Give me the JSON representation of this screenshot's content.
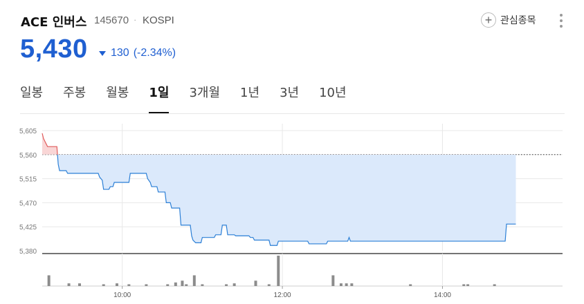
{
  "header": {
    "name": "ACE 인버스",
    "code": "145670",
    "separator": "·",
    "market": "KOSPI",
    "watch_label": "관심종목",
    "watch_icon": "plus-circle-icon",
    "more_icon": "more-vertical-icon"
  },
  "quote": {
    "price": "5,430",
    "change": "130",
    "change_pct": "(-2.34%)",
    "direction_icon": "triangle-down-icon",
    "color": "#1f5fd1"
  },
  "tabs": [
    {
      "label": "일봉",
      "active": false
    },
    {
      "label": "주봉",
      "active": false
    },
    {
      "label": "월봉",
      "active": false
    },
    {
      "label": "1일",
      "active": true
    },
    {
      "label": "3개월",
      "active": false
    },
    {
      "label": "1년",
      "active": false
    },
    {
      "label": "3년",
      "active": false
    },
    {
      "label": "10년",
      "active": false
    }
  ],
  "chart_data": {
    "type": "line",
    "x_unit": "minutes since 09:00",
    "x_range": [
      "09:00",
      "15:30"
    ],
    "ylim": [
      5380,
      5605
    ],
    "y_ticks": [
      "5,605",
      "5,560",
      "5,515",
      "5,470",
      "5,425",
      "5,380"
    ],
    "x_ticks": [
      "10:00",
      "12:00",
      "14:00"
    ],
    "previous_close": 5560,
    "colors": {
      "down_line": "#2b7fd6",
      "down_fill": "#dbe9fb",
      "up_line": "#e05a5a",
      "up_fill": "#f9d6d6",
      "volume": "#8c8c8c",
      "grid": "#e8e8e8"
    },
    "price": [
      [
        0,
        5600
      ],
      [
        1,
        5590
      ],
      [
        2,
        5585
      ],
      [
        4,
        5575
      ],
      [
        11,
        5575
      ],
      [
        12,
        5542
      ],
      [
        13,
        5530
      ],
      [
        18,
        5530
      ],
      [
        19,
        5525
      ],
      [
        42,
        5525
      ],
      [
        43,
        5518
      ],
      [
        45,
        5512
      ],
      [
        46,
        5495
      ],
      [
        50,
        5495
      ],
      [
        51,
        5500
      ],
      [
        53,
        5500
      ],
      [
        54,
        5508
      ],
      [
        65,
        5508
      ],
      [
        66,
        5525
      ],
      [
        78,
        5525
      ],
      [
        79,
        5515
      ],
      [
        81,
        5508
      ],
      [
        82,
        5500
      ],
      [
        86,
        5500
      ],
      [
        87,
        5490
      ],
      [
        92,
        5490
      ],
      [
        93,
        5470
      ],
      [
        96,
        5470
      ],
      [
        97,
        5460
      ],
      [
        103,
        5460
      ],
      [
        104,
        5428
      ],
      [
        111,
        5428
      ],
      [
        112,
        5408
      ],
      [
        113,
        5400
      ],
      [
        115,
        5395
      ],
      [
        119,
        5395
      ],
      [
        120,
        5405
      ],
      [
        129,
        5405
      ],
      [
        130,
        5410
      ],
      [
        134,
        5410
      ],
      [
        135,
        5428
      ],
      [
        138,
        5428
      ],
      [
        139,
        5410
      ],
      [
        144,
        5410
      ],
      [
        145,
        5408
      ],
      [
        155,
        5408
      ],
      [
        156,
        5405
      ],
      [
        158,
        5405
      ],
      [
        159,
        5400
      ],
      [
        170,
        5400
      ],
      [
        171,
        5390
      ],
      [
        176,
        5390
      ],
      [
        177,
        5398
      ],
      [
        199,
        5398
      ],
      [
        200,
        5393
      ],
      [
        213,
        5393
      ],
      [
        214,
        5398
      ],
      [
        229,
        5398
      ],
      [
        230,
        5405
      ],
      [
        231,
        5398
      ],
      [
        347,
        5398
      ],
      [
        348,
        5430
      ],
      [
        355,
        5430
      ]
    ],
    "volume": [
      [
        5,
        12
      ],
      [
        20,
        3
      ],
      [
        28,
        3
      ],
      [
        46,
        2
      ],
      [
        56,
        3
      ],
      [
        65,
        2
      ],
      [
        78,
        2
      ],
      [
        94,
        2
      ],
      [
        100,
        4
      ],
      [
        105,
        6
      ],
      [
        108,
        2
      ],
      [
        114,
        12
      ],
      [
        120,
        2
      ],
      [
        138,
        2
      ],
      [
        144,
        3
      ],
      [
        160,
        6
      ],
      [
        170,
        2
      ],
      [
        177,
        34
      ],
      [
        218,
        12
      ],
      [
        224,
        3
      ],
      [
        228,
        3
      ],
      [
        232,
        3
      ],
      [
        276,
        2
      ],
      [
        316,
        2
      ],
      [
        319,
        2
      ],
      [
        339,
        2
      ]
    ],
    "volume_max": 34
  }
}
